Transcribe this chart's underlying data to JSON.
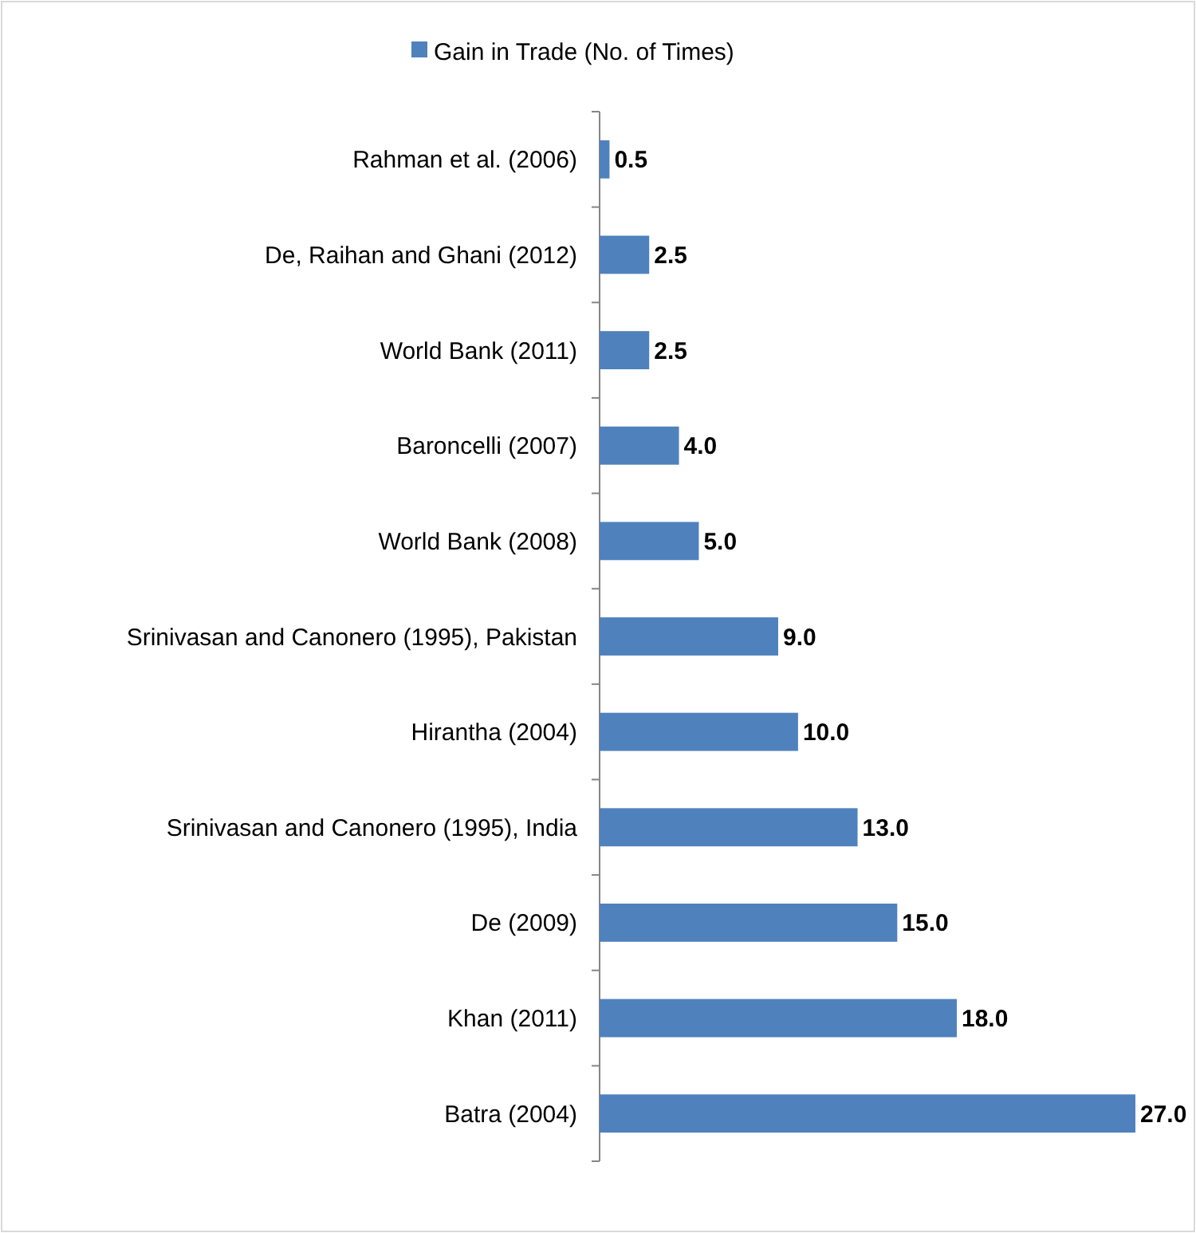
{
  "chart_data": {
    "type": "bar",
    "orientation": "horizontal",
    "legend": "top",
    "categories": [
      "Rahman et al. (2006)",
      "De, Raihan and Ghani (2012)",
      "World Bank (2011)",
      "Baroncelli (2007)",
      "World Bank (2008)",
      "Srinivasan and Canonero (1995), Pakistan",
      "Hirantha (2004)",
      "Srinivasan and Canonero (1995), India",
      "De (2009)",
      "Khan (2011)",
      "Batra (2004)"
    ],
    "series": [
      {
        "name": "Gain in Trade (No. of Times)",
        "color": "#4f81bd",
        "values": [
          0.5,
          2.5,
          2.5,
          4.0,
          5.0,
          9.0,
          10.0,
          13.0,
          15.0,
          18.0,
          27.0
        ],
        "value_labels": [
          "0.5",
          "2.5",
          "2.5",
          "4.0",
          "5.0",
          "9.0",
          "10.0",
          "13.0",
          "15.0",
          "18.0",
          "27.0"
        ]
      }
    ]
  }
}
